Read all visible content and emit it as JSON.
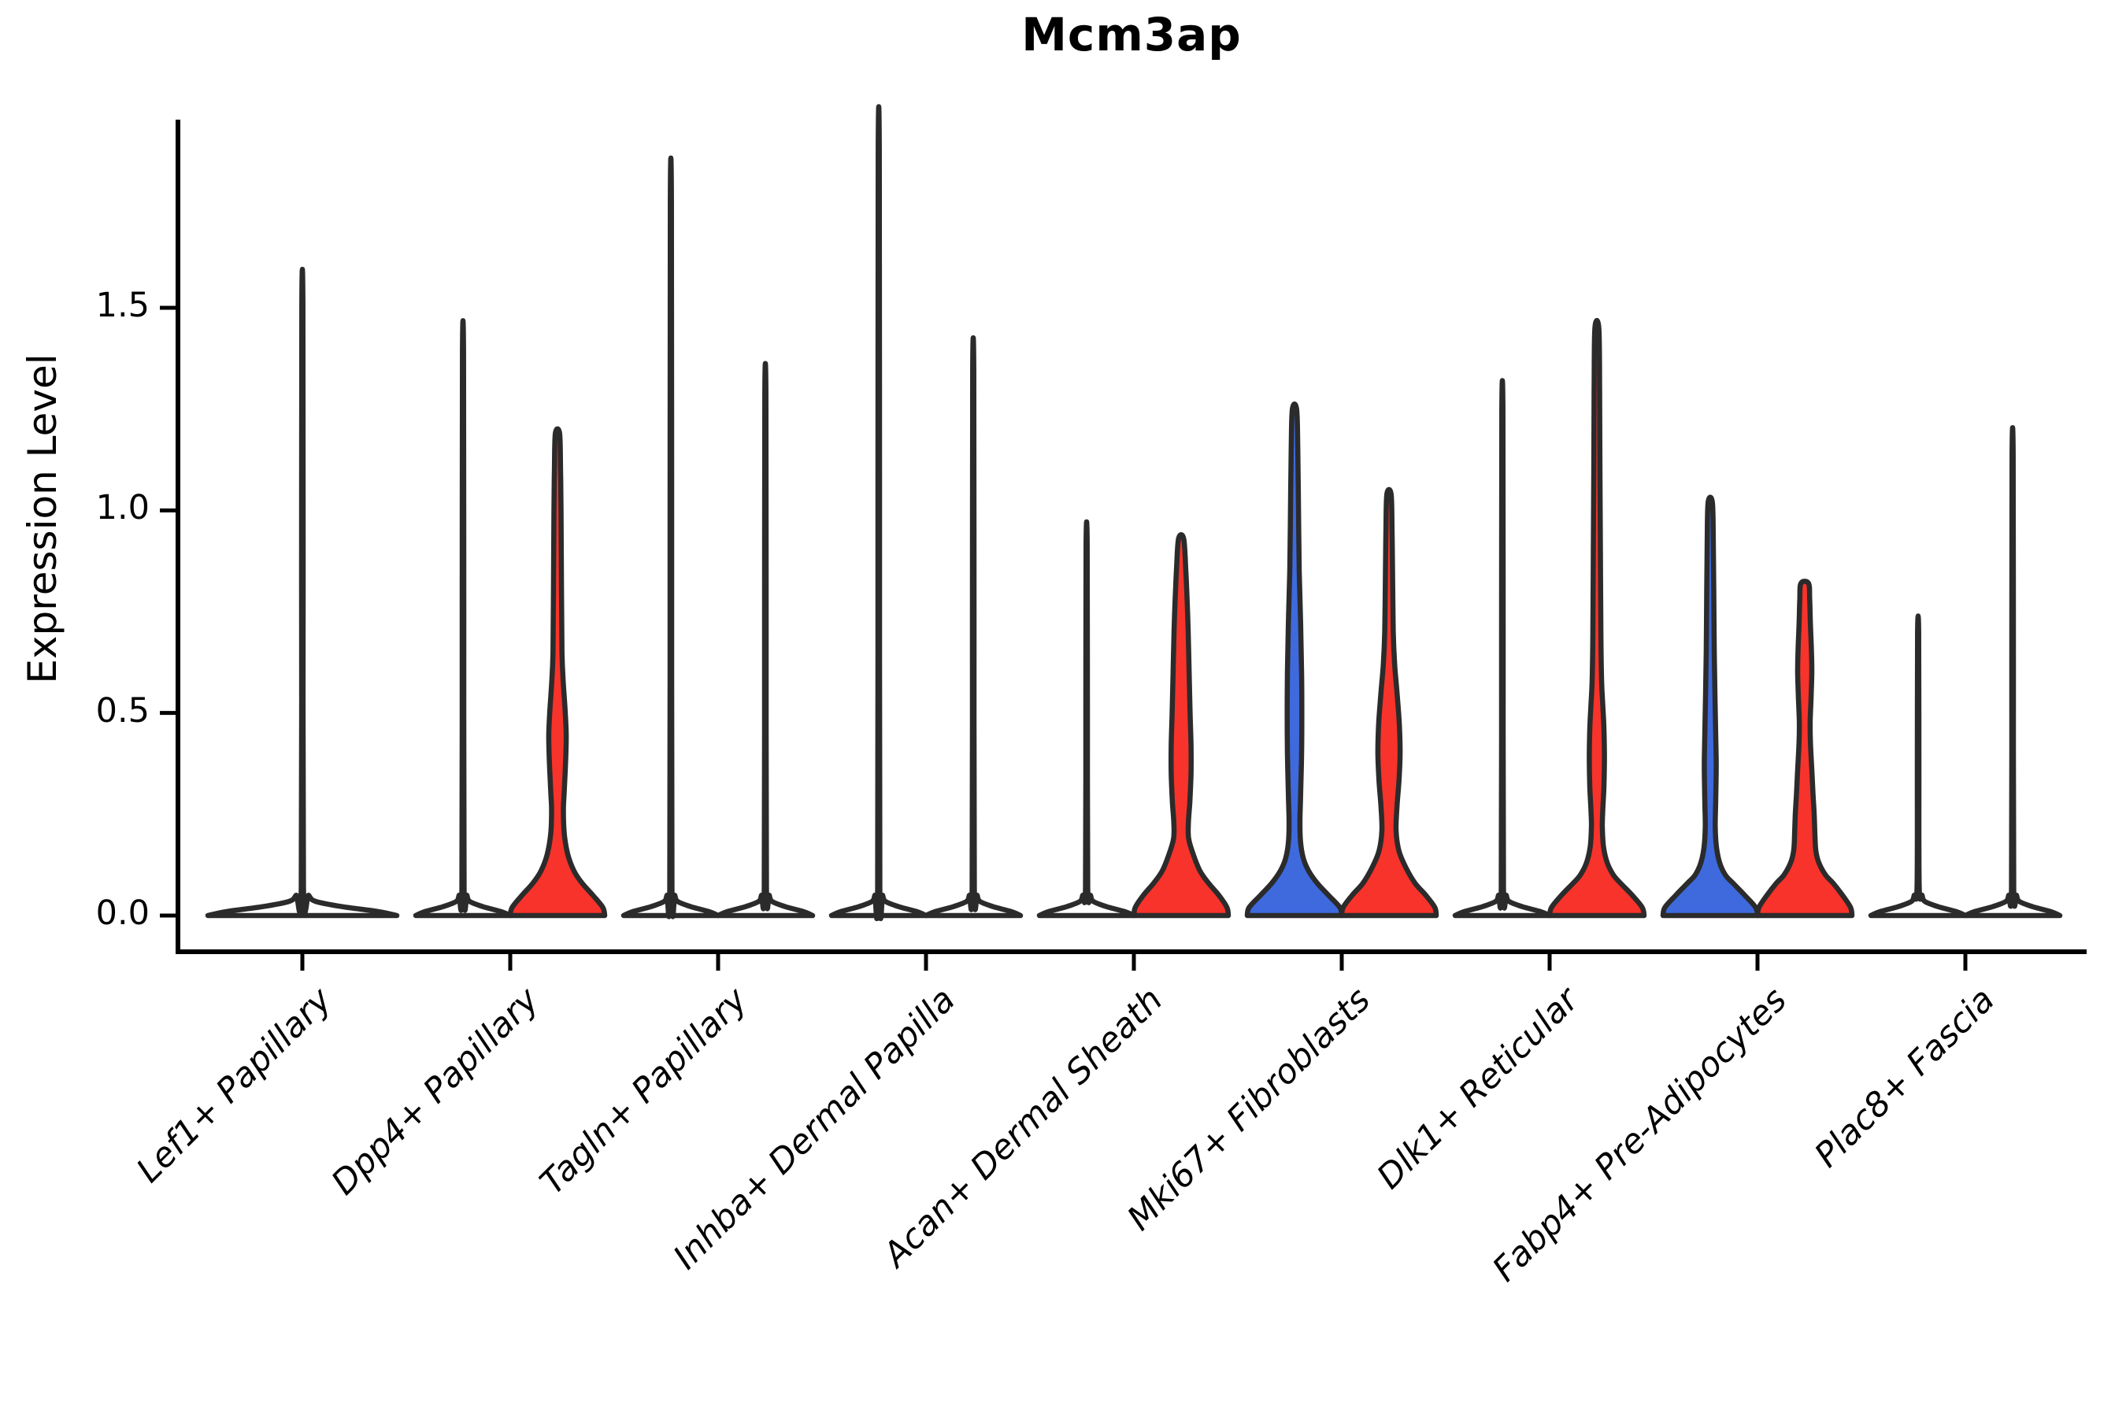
{
  "title": "Mcm3ap",
  "axes": {
    "ylabel": "Expression Level",
    "ytick_labels": [
      "0.0",
      "0.5",
      "1.0",
      "1.5"
    ],
    "ytick_values": [
      0.0,
      0.5,
      1.0,
      1.5
    ]
  },
  "colors": {
    "red_fill": "#f8332b",
    "blue_fill": "#3e6ade",
    "violin_stroke": "#2b2b2b",
    "axis_color": "#000000",
    "background": "#ffffff"
  },
  "chart_data": {
    "type": "violin",
    "title": "Mcm3ap",
    "xlabel": "",
    "ylabel": "Expression Level",
    "ylim": [
      -0.09,
      1.96
    ],
    "yticks": [
      0.0,
      0.5,
      1.0,
      1.5
    ],
    "grid": false,
    "legend": "none",
    "categories": [
      "Lef1+ Papillary",
      "Dpp4+ Papillary",
      "Tagln+ Papillary",
      "Inhba+ Dermal Papilla",
      "Acan+ Dermal Sheath",
      "Mki67+ Fibroblasts",
      "Dlk1+ Reticular",
      "Fabp4+ Pre-Adipocytes",
      "Plac8+ Fascia"
    ],
    "group_colors": {
      "left": "blue",
      "right": "red"
    },
    "violins": [
      {
        "category_index": 0,
        "category": "Lef1+ Papillary",
        "position": "center",
        "fill": "none",
        "max": 1.51,
        "shape": "spike"
      },
      {
        "category_index": 1,
        "category": "Dpp4+ Papillary",
        "position": "left",
        "fill": "none",
        "max": 1.39,
        "shape": "spike"
      },
      {
        "category_index": 1,
        "category": "Dpp4+ Papillary",
        "position": "right",
        "fill": "red",
        "max": 1.19,
        "shape": "density",
        "profile": [
          [
            0,
            1.0
          ],
          [
            0.02,
            0.96
          ],
          [
            0.05,
            0.75
          ],
          [
            0.08,
            0.52
          ],
          [
            0.11,
            0.35
          ],
          [
            0.15,
            0.22
          ],
          [
            0.2,
            0.145
          ],
          [
            0.26,
            0.125
          ],
          [
            0.3,
            0.14
          ],
          [
            0.36,
            0.165
          ],
          [
            0.44,
            0.185
          ],
          [
            0.5,
            0.165
          ],
          [
            0.58,
            0.12
          ],
          [
            0.65,
            0.095
          ],
          [
            0.8,
            0.085
          ],
          [
            1.0,
            0.075
          ],
          [
            1.1,
            0.065
          ],
          [
            1.19,
            0.045
          ]
        ]
      },
      {
        "category_index": 2,
        "category": "Tagln+ Papillary",
        "position": "left",
        "fill": "none",
        "max": 1.77,
        "shape": "spike"
      },
      {
        "category_index": 2,
        "category": "Tagln+ Papillary",
        "position": "right",
        "fill": "none",
        "max": 1.29,
        "shape": "spike"
      },
      {
        "category_index": 3,
        "category": "Inhba+ Dermal Papilla",
        "position": "left",
        "fill": "none",
        "max": 1.89,
        "shape": "spike"
      },
      {
        "category_index": 3,
        "category": "Inhba+ Dermal Papilla",
        "position": "right",
        "fill": "none",
        "max": 1.35,
        "shape": "spike"
      },
      {
        "category_index": 4,
        "category": "Acan+ Dermal Sheath",
        "position": "left",
        "fill": "none",
        "max": 0.92,
        "shape": "spike"
      },
      {
        "category_index": 4,
        "category": "Acan+ Dermal Sheath",
        "position": "right",
        "fill": "red",
        "max": 0.93,
        "shape": "density",
        "profile": [
          [
            0,
            1.0
          ],
          [
            0.02,
            0.97
          ],
          [
            0.05,
            0.8
          ],
          [
            0.08,
            0.58
          ],
          [
            0.11,
            0.4
          ],
          [
            0.15,
            0.26
          ],
          [
            0.19,
            0.16
          ],
          [
            0.23,
            0.155
          ],
          [
            0.28,
            0.185
          ],
          [
            0.35,
            0.21
          ],
          [
            0.42,
            0.21
          ],
          [
            0.5,
            0.19
          ],
          [
            0.6,
            0.17
          ],
          [
            0.7,
            0.15
          ],
          [
            0.77,
            0.13
          ],
          [
            0.85,
            0.1
          ],
          [
            0.93,
            0.055
          ]
        ]
      },
      {
        "category_index": 5,
        "category": "Mki67+ Fibroblasts",
        "position": "left",
        "fill": "blue",
        "max": 1.25,
        "shape": "density",
        "profile": [
          [
            0,
            1.0
          ],
          [
            0.02,
            0.96
          ],
          [
            0.05,
            0.72
          ],
          [
            0.08,
            0.48
          ],
          [
            0.11,
            0.3
          ],
          [
            0.14,
            0.19
          ],
          [
            0.18,
            0.13
          ],
          [
            0.23,
            0.115
          ],
          [
            0.3,
            0.13
          ],
          [
            0.4,
            0.15
          ],
          [
            0.5,
            0.155
          ],
          [
            0.6,
            0.15
          ],
          [
            0.72,
            0.13
          ],
          [
            0.85,
            0.1
          ],
          [
            1.0,
            0.085
          ],
          [
            1.15,
            0.07
          ],
          [
            1.25,
            0.045
          ]
        ]
      },
      {
        "category_index": 5,
        "category": "Mki67+ Fibroblasts",
        "position": "right",
        "fill": "red",
        "max": 1.04,
        "shape": "density",
        "profile": [
          [
            0,
            1.0
          ],
          [
            0.02,
            0.97
          ],
          [
            0.05,
            0.78
          ],
          [
            0.08,
            0.55
          ],
          [
            0.12,
            0.35
          ],
          [
            0.16,
            0.21
          ],
          [
            0.21,
            0.15
          ],
          [
            0.27,
            0.17
          ],
          [
            0.33,
            0.21
          ],
          [
            0.4,
            0.235
          ],
          [
            0.47,
            0.22
          ],
          [
            0.55,
            0.17
          ],
          [
            0.62,
            0.12
          ],
          [
            0.7,
            0.09
          ],
          [
            0.85,
            0.075
          ],
          [
            0.95,
            0.065
          ],
          [
            1.04,
            0.045
          ]
        ]
      },
      {
        "category_index": 6,
        "category": "Dlk1+ Reticular",
        "position": "left",
        "fill": "none",
        "max": 1.25,
        "shape": "spike"
      },
      {
        "category_index": 6,
        "category": "Dlk1+ Reticular",
        "position": "right",
        "fill": "red",
        "max": 1.45,
        "shape": "density",
        "profile": [
          [
            0,
            1.0
          ],
          [
            0.02,
            0.96
          ],
          [
            0.05,
            0.75
          ],
          [
            0.08,
            0.5
          ],
          [
            0.1,
            0.35
          ],
          [
            0.13,
            0.22
          ],
          [
            0.17,
            0.14
          ],
          [
            0.22,
            0.115
          ],
          [
            0.26,
            0.125
          ],
          [
            0.32,
            0.15
          ],
          [
            0.39,
            0.16
          ],
          [
            0.46,
            0.15
          ],
          [
            0.52,
            0.125
          ],
          [
            0.58,
            0.1
          ],
          [
            0.7,
            0.085
          ],
          [
            0.9,
            0.075
          ],
          [
            1.1,
            0.065
          ],
          [
            1.3,
            0.058
          ],
          [
            1.45,
            0.042
          ]
        ]
      },
      {
        "category_index": 7,
        "category": "Fabp4+ Pre-Adipocytes",
        "position": "left",
        "fill": "blue",
        "max": 1.02,
        "shape": "density",
        "profile": [
          [
            0,
            1.0
          ],
          [
            0.02,
            0.96
          ],
          [
            0.05,
            0.73
          ],
          [
            0.08,
            0.48
          ],
          [
            0.1,
            0.32
          ],
          [
            0.13,
            0.2
          ],
          [
            0.17,
            0.13
          ],
          [
            0.22,
            0.105
          ],
          [
            0.28,
            0.115
          ],
          [
            0.35,
            0.125
          ],
          [
            0.39,
            0.125
          ],
          [
            0.45,
            0.115
          ],
          [
            0.54,
            0.1
          ],
          [
            0.65,
            0.085
          ],
          [
            0.8,
            0.075
          ],
          [
            0.92,
            0.065
          ],
          [
            1.02,
            0.045
          ]
        ]
      },
      {
        "category_index": 7,
        "category": "Fabp4+ Pre-Adipocytes",
        "position": "right",
        "fill": "red",
        "max": 0.82,
        "shape": "density",
        "profile": [
          [
            0,
            1.0
          ],
          [
            0.02,
            0.97
          ],
          [
            0.05,
            0.8
          ],
          [
            0.08,
            0.6
          ],
          [
            0.1,
            0.44
          ],
          [
            0.13,
            0.3
          ],
          [
            0.16,
            0.235
          ],
          [
            0.2,
            0.215
          ],
          [
            0.25,
            0.2
          ],
          [
            0.3,
            0.175
          ],
          [
            0.36,
            0.15
          ],
          [
            0.43,
            0.12
          ],
          [
            0.48,
            0.115
          ],
          [
            0.54,
            0.135
          ],
          [
            0.6,
            0.15
          ],
          [
            0.66,
            0.14
          ],
          [
            0.72,
            0.12
          ],
          [
            0.78,
            0.105
          ],
          [
            0.82,
            0.08
          ]
        ]
      },
      {
        "category_index": 8,
        "category": "Plac8+ Fascia",
        "position": "left",
        "fill": "none",
        "max": 0.7,
        "shape": "spike"
      },
      {
        "category_index": 8,
        "category": "Plac8+ Fascia",
        "position": "right",
        "fill": "none",
        "max": 1.14,
        "shape": "spike"
      }
    ]
  }
}
